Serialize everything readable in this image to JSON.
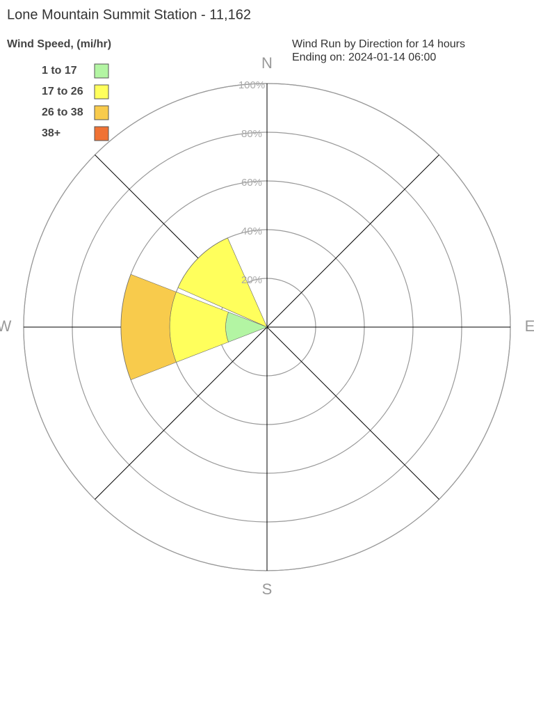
{
  "chart_data": {
    "type": "windrose",
    "title": "Lone Mountain Summit Station - 11,162",
    "subtitle": [
      "Wind Run by Direction for 14 hours",
      "Ending on: 2024-01-14 06:00"
    ],
    "legend_title": "Wind Speed, (mi/hr)",
    "legend": "top-left",
    "categories": [
      "N",
      null,
      "E",
      null,
      "S",
      null,
      "W",
      null
    ],
    "series": [
      {
        "name": "1 to 17",
        "color": "#b3f5a3",
        "values": [
          0,
          0,
          0,
          0,
          0,
          0,
          17,
          0
        ]
      },
      {
        "name": "17 to 26",
        "color": "#ffff5c",
        "values": [
          0,
          0,
          0,
          0,
          0,
          0,
          23,
          40
        ]
      },
      {
        "name": "26 to 38",
        "color": "#f8cb4c",
        "values": [
          0,
          0,
          0,
          0,
          0,
          0,
          20,
          0
        ]
      },
      {
        "name": "38+",
        "color": "#f07234",
        "values": [
          0,
          0,
          0,
          0,
          0,
          0,
          0,
          0
        ]
      }
    ],
    "rlim": [
      0,
      100
    ],
    "rticks": [
      {
        "value": 20,
        "label": "20%"
      },
      {
        "value": 40,
        "label": "40%"
      },
      {
        "value": 60,
        "label": "60%"
      },
      {
        "value": 80,
        "label": "80%"
      },
      {
        "value": 100,
        "label": "100%"
      }
    ],
    "grid": true
  }
}
